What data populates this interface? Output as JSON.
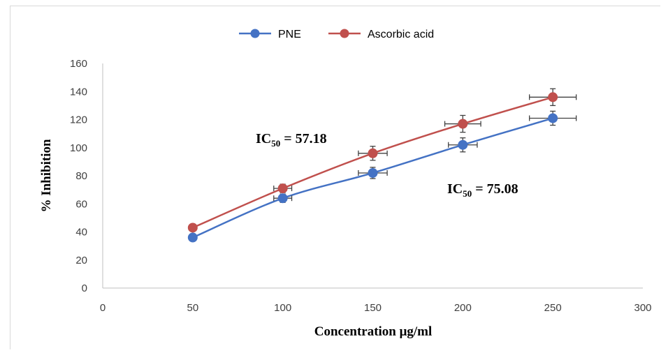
{
  "chart_data": {
    "type": "line",
    "title": "",
    "xlabel": "Concentration μg/ml",
    "ylabel": "% Inhibition",
    "xlim": [
      0,
      300
    ],
    "ylim": [
      0,
      160
    ],
    "xticks": [
      "0",
      "50",
      "100",
      "150",
      "200",
      "250",
      "300"
    ],
    "yticks": [
      "0",
      "20",
      "40",
      "60",
      "80",
      "100",
      "120",
      "140",
      "160"
    ],
    "grid": false,
    "legend_position": "top",
    "x": [
      50,
      100,
      150,
      200,
      250
    ],
    "series": [
      {
        "name": "PNE",
        "color": "#4472c4",
        "values": [
          36,
          64,
          82,
          102,
          121
        ],
        "y_error": [
          1,
          3,
          4,
          5,
          5
        ],
        "x_error": [
          0,
          5,
          8,
          8,
          13
        ]
      },
      {
        "name": "Ascorbic acid",
        "color": "#c0504d",
        "values": [
          43,
          71,
          96,
          117,
          136
        ],
        "y_error": [
          1,
          3,
          5,
          6,
          6
        ],
        "x_error": [
          0,
          5,
          8,
          10,
          13
        ]
      }
    ],
    "annotations": [
      {
        "prefix": "IC",
        "subscript": "50",
        "suffix": " = 57.18"
      },
      {
        "prefix": "IC",
        "subscript": "50",
        "suffix": " = 75.08"
      }
    ]
  }
}
